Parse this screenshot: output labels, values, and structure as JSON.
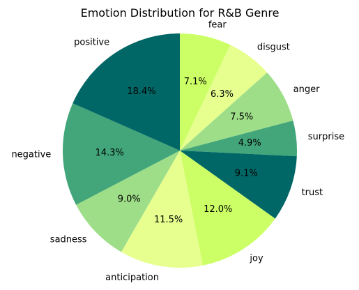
{
  "chart_data": {
    "type": "pie",
    "title": "Emotion Distribution for R&B Genre",
    "start_angle_deg": 90,
    "direction": "clockwise",
    "slices": [
      {
        "label": "fear",
        "value": 7.1,
        "pct_label": "7.1%",
        "color": "#ccff66"
      },
      {
        "label": "disgust",
        "value": 6.3,
        "pct_label": "6.3%",
        "color": "#e6ff8f"
      },
      {
        "label": "anger",
        "value": 7.5,
        "pct_label": "7.5%",
        "color": "#9ede88"
      },
      {
        "label": "surprise",
        "value": 4.9,
        "pct_label": "4.9%",
        "color": "#42a67a"
      },
      {
        "label": "trust",
        "value": 9.1,
        "pct_label": "9.1%",
        "color": "#006766"
      },
      {
        "label": "joy",
        "value": 12.0,
        "pct_label": "12.0%",
        "color": "#ccff66"
      },
      {
        "label": "anticipation",
        "value": 11.5,
        "pct_label": "11.5%",
        "color": "#e6ff8f"
      },
      {
        "label": "sadness",
        "value": 9.0,
        "pct_label": "9.0%",
        "color": "#9ede88"
      },
      {
        "label": "negative",
        "value": 14.3,
        "pct_label": "14.3%",
        "color": "#42a67a"
      },
      {
        "label": "positive",
        "value": 18.4,
        "pct_label": "18.4%",
        "color": "#006766"
      }
    ]
  }
}
